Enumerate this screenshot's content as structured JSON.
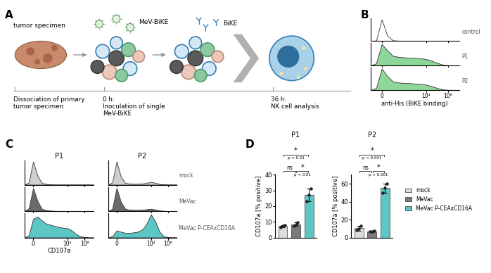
{
  "schematic": {
    "panel": "A",
    "tumor_label": "tumor specimen",
    "virus_label": "MeV-BiKE",
    "bike_label": "BiKE",
    "timeline": [
      {
        "lines": [
          "Dissociation of primary",
          "tumor specimen"
        ]
      },
      {
        "lines": [
          "0 h:",
          "Inoculation of single",
          "MeV-BiKE"
        ]
      },
      {
        "lines": [
          "36 h:",
          "NK cell analysis"
        ]
      }
    ]
  },
  "chart_data": [
    {
      "panel": "B",
      "type": "area",
      "x_label": "anti-His (BiKE binding)",
      "x": [
        -1,
        -0.5,
        0,
        0.5,
        1,
        1.5,
        2,
        2.5,
        3,
        3.5,
        4,
        4.5,
        5,
        5.5,
        6,
        6.5,
        7
      ],
      "xlim": [
        -1,
        7
      ],
      "xticks": [
        0,
        {
          "value": 4,
          "label": "10⁴"
        },
        {
          "value": 6,
          "label": "10⁶"
        }
      ],
      "ylim": [
        0,
        1.05
      ],
      "tick_labels": "x",
      "series": [
        {
          "name": "control",
          "color": "#ffffff",
          "values": [
            0,
            0.02,
            1.0,
            0.25,
            0.03,
            0.01,
            0,
            0,
            0,
            0,
            0,
            0,
            0,
            0,
            0,
            0,
            0
          ]
        },
        {
          "name": "P1",
          "color": "#8fd69a",
          "values": [
            0,
            0.1,
            1.0,
            0.7,
            0.45,
            0.4,
            0.38,
            0.36,
            0.35,
            0.33,
            0.3,
            0.22,
            0.12,
            0.04,
            0.01,
            0,
            0
          ]
        },
        {
          "name": "P2",
          "color": "#8fd69a",
          "values": [
            0,
            0.1,
            1.0,
            0.65,
            0.4,
            0.35,
            0.33,
            0.32,
            0.3,
            0.28,
            0.25,
            0.18,
            0.1,
            0.03,
            0.01,
            0,
            0
          ]
        }
      ]
    },
    {
      "panel": "C",
      "type": "area",
      "x_label": "CD107a",
      "groups": [
        "P1",
        "P2"
      ],
      "x": [
        -1,
        -0.5,
        0,
        0.5,
        1,
        1.5,
        2,
        2.5,
        3,
        3.5,
        4,
        4.5,
        5,
        5.5,
        6,
        6.5,
        7
      ],
      "xlim": [
        -1,
        7
      ],
      "xticks": [
        0,
        {
          "value": 4,
          "label": "10⁴"
        },
        {
          "value": 6,
          "label": "10⁶"
        }
      ],
      "ylim": [
        0,
        1.05
      ],
      "tick_labels": "x",
      "series": [
        {
          "name": "mock",
          "color": "#cfcfcf",
          "values": [
            [
              0,
              0.1,
              1.0,
              0.4,
              0.08,
              0.03,
              0.01,
              0,
              0,
              0,
              0,
              0,
              0,
              0,
              0,
              0,
              0
            ],
            [
              0,
              0.1,
              1.0,
              0.35,
              0.08,
              0.05,
              0.04,
              0.04,
              0.05,
              0.08,
              0.12,
              0.08,
              0.03,
              0.01,
              0,
              0,
              0
            ]
          ]
        },
        {
          "name": "MeVac",
          "color": "#6b6b6b",
          "values": [
            [
              0,
              0.12,
              1.0,
              0.45,
              0.1,
              0.04,
              0.02,
              0.01,
              0,
              0,
              0,
              0,
              0,
              0,
              0,
              0,
              0
            ],
            [
              0,
              0.1,
              1.0,
              0.4,
              0.1,
              0.06,
              0.05,
              0.05,
              0.06,
              0.08,
              0.1,
              0.07,
              0.03,
              0.01,
              0,
              0,
              0
            ]
          ]
        },
        {
          "name": "MeVac P-CEAxCD16A",
          "color": "#5cc6c4",
          "values": [
            [
              0,
              0.1,
              0.8,
              0.9,
              0.75,
              0.6,
              0.55,
              0.5,
              0.45,
              0.42,
              0.4,
              0.3,
              0.15,
              0.05,
              0.01,
              0,
              0
            ],
            [
              0,
              0.05,
              0.3,
              0.25,
              0.2,
              0.2,
              0.22,
              0.25,
              0.35,
              0.6,
              1.0,
              0.7,
              0.25,
              0.05,
              0.01,
              0,
              0
            ]
          ]
        }
      ]
    },
    {
      "panel": "D",
      "type": "bar",
      "title": "P1",
      "y_label": "CD107a [% positive]",
      "categories": [
        "mock",
        "MeVac",
        "MeVac P-CEAxCD16A"
      ],
      "values": [
        7.2,
        8.5,
        27
      ],
      "errors": [
        0.7,
        1.0,
        4
      ],
      "points": [
        [
          6.5,
          7.2,
          7.8
        ],
        [
          7.5,
          8.5,
          9.5
        ],
        [
          23,
          27,
          31
        ]
      ],
      "colors": [
        "#dcdcdc",
        "#7a7a7a",
        "#5cc6c4"
      ],
      "ylim": [
        0,
        40
      ],
      "yticks": [
        0,
        10,
        20,
        30,
        40
      ],
      "tick_labels": "y",
      "comparisons": [
        {
          "between": [
            "mock",
            "MeVac"
          ],
          "label": "ns"
        },
        {
          "between": [
            "MeVac",
            "MeVac P-CEAxCD16A"
          ],
          "label": "*",
          "p": "p < 0.01"
        },
        {
          "between": [
            "mock",
            "MeVac P-CEAxCD16A"
          ],
          "label": "*",
          "p": "p < 0.01"
        }
      ]
    },
    {
      "panel": "D",
      "type": "bar",
      "title": "P2",
      "y_label": "CD107a [% positive]",
      "categories": [
        "mock",
        "MeVac",
        "MeVac P-CEAxCD16A"
      ],
      "values": [
        10.3,
        7,
        55
      ],
      "errors": [
        2.5,
        0.5,
        5
      ],
      "points": [
        [
          8,
          10,
          13
        ],
        [
          6.5,
          7,
          7.5
        ],
        [
          50,
          55,
          60
        ]
      ],
      "colors": [
        "#dcdcdc",
        "#7a7a7a",
        "#5cc6c4"
      ],
      "ylim": [
        0,
        70
      ],
      "yticks": [
        0,
        20,
        40,
        60
      ],
      "tick_labels": "y",
      "legend": "right",
      "comparisons": [
        {
          "between": [
            "mock",
            "MeVac"
          ],
          "label": "ns"
        },
        {
          "between": [
            "MeVac",
            "MeVac P-CEAxCD16A"
          ],
          "label": "*",
          "p": "p < 0.001"
        },
        {
          "between": [
            "mock",
            "MeVac P-CEAxCD16A"
          ],
          "label": "*",
          "p": "p < 0.001"
        }
      ]
    }
  ]
}
